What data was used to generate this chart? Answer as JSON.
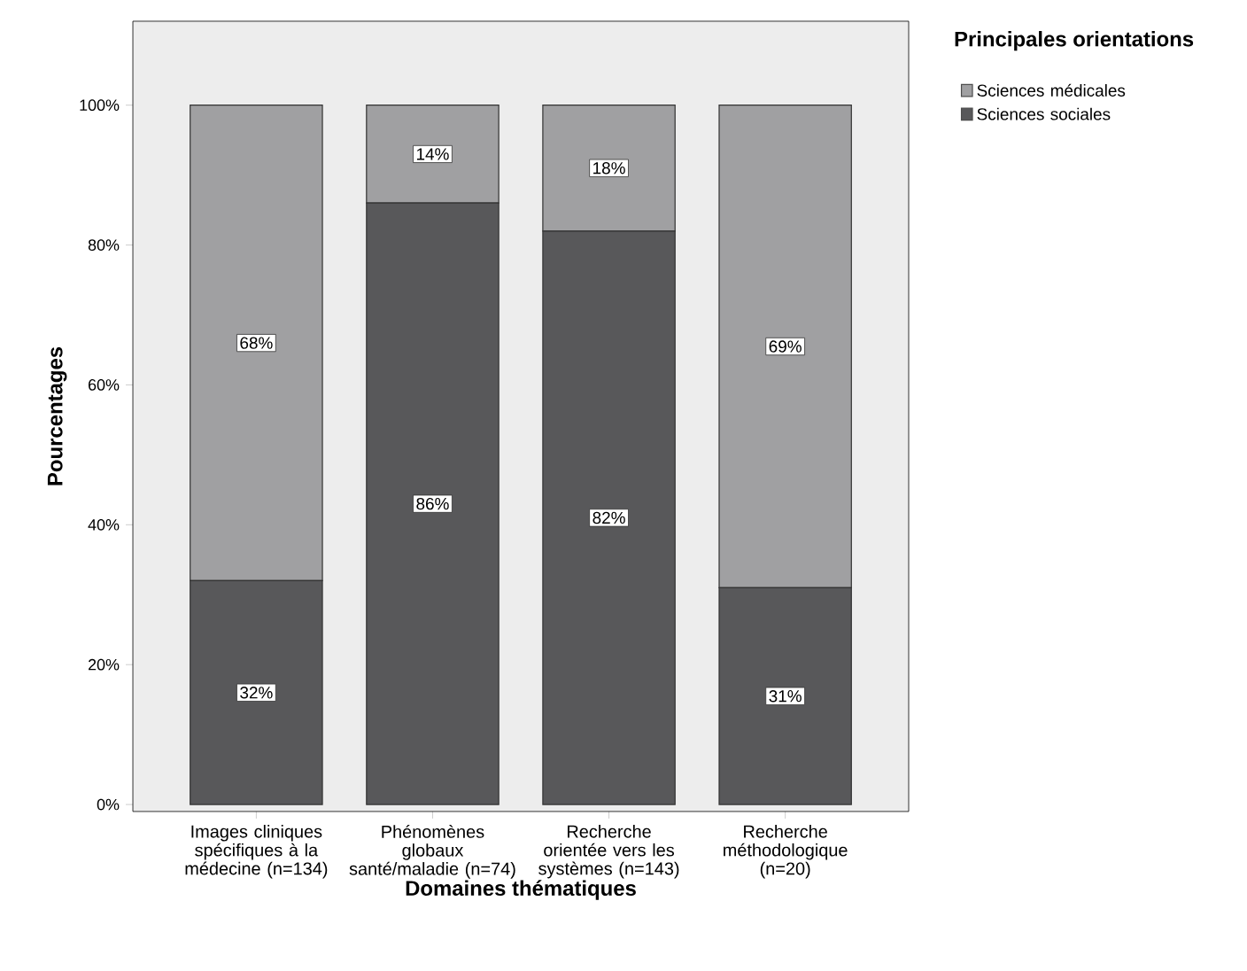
{
  "chart_data": {
    "type": "bar",
    "stacked": true,
    "xlabel": "Domaines thématiques",
    "ylabel": "Pourcentages",
    "legend_title": "Principales orientations",
    "legend": "top right",
    "categories": [
      "Images cliniques spécifiques à la médecine (n=134)",
      "Phénomènes globaux santé/maladie (n=74)",
      "Recherche orientée vers les systèmes (n=143)",
      "Recherche méthodologique (n=20)"
    ],
    "series": [
      {
        "name": "Sciences sociales",
        "color": "#58585a",
        "values": [
          32,
          86,
          82,
          31
        ],
        "value_labels": [
          "32%",
          "86%",
          "82%",
          "31%"
        ]
      },
      {
        "name": "Sciences médicales",
        "color": "#a0a0a2",
        "values": [
          68,
          14,
          18,
          69
        ],
        "value_labels": [
          "68%",
          "14%",
          "18%",
          "69%"
        ]
      }
    ],
    "ylim": [
      -1,
      112
    ],
    "yticks": [
      {
        "value": 0,
        "label": "0%"
      },
      {
        "value": 20,
        "label": "20%"
      },
      {
        "value": 40,
        "label": "40%"
      },
      {
        "value": 60,
        "label": "60%"
      },
      {
        "value": 80,
        "label": "80%"
      },
      {
        "value": 100,
        "label": "100%"
      }
    ]
  }
}
